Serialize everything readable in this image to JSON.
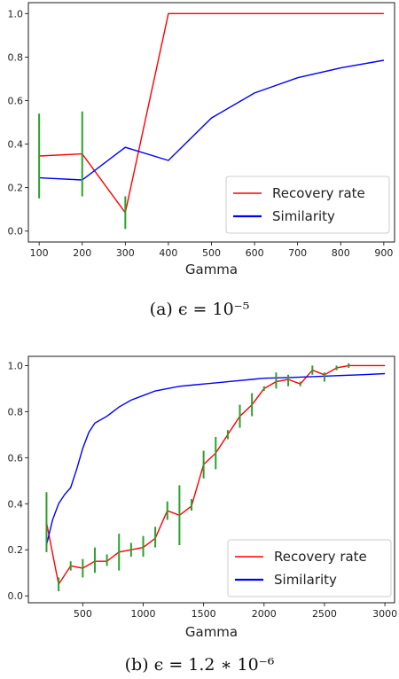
{
  "chart_data": [
    {
      "type": "line",
      "xlabel": "Gamma",
      "caption": "(a) ϵ = 10⁻⁵",
      "xlim": [
        75,
        925
      ],
      "ylim": [
        -0.05,
        1.05
      ],
      "xticks": [
        100,
        200,
        300,
        400,
        500,
        600,
        700,
        800,
        900
      ],
      "xtick_labels": [
        "100",
        "200",
        "300",
        "400",
        "500",
        "600",
        "700",
        "800",
        "900"
      ],
      "yticks": [
        0.0,
        0.2,
        0.4,
        0.6,
        0.8,
        1.0
      ],
      "ytick_labels": [
        "0.0",
        "0.2",
        "0.4",
        "0.6",
        "0.8",
        "1.0"
      ],
      "legend_position": "lower-right",
      "series": [
        {
          "name": "Recovery rate",
          "color": "#ff0000",
          "x": [
            100,
            200,
            300,
            400,
            500,
            600,
            700,
            800,
            900
          ],
          "values": [
            0.345,
            0.355,
            0.085,
            1.0,
            1.0,
            1.0,
            1.0,
            1.0,
            1.0
          ],
          "errorbars": [
            {
              "x": 100,
              "low": 0.15,
              "high": 0.54
            },
            {
              "x": 200,
              "low": 0.16,
              "high": 0.55
            },
            {
              "x": 300,
              "low": 0.01,
              "high": 0.16
            }
          ]
        },
        {
          "name": "Similarity",
          "color": "#0000ff",
          "x": [
            100,
            200,
            300,
            400,
            500,
            600,
            700,
            800,
            900
          ],
          "values": [
            0.245,
            0.235,
            0.385,
            0.325,
            0.52,
            0.635,
            0.705,
            0.75,
            0.785
          ]
        }
      ],
      "errorbar_color": "#2ca02c"
    },
    {
      "type": "line",
      "xlabel": "Gamma",
      "caption": "(b) ϵ = 1.2 ∗ 10⁻⁶",
      "xlim": [
        50,
        3080
      ],
      "ylim": [
        -0.03,
        1.04
      ],
      "xticks": [
        500,
        1000,
        1500,
        2000,
        2500,
        3000
      ],
      "xtick_labels": [
        "500",
        "1000",
        "1500",
        "2000",
        "2500",
        "3000"
      ],
      "yticks": [
        0.0,
        0.2,
        0.4,
        0.6,
        0.8,
        1.0
      ],
      "ytick_labels": [
        "0.0",
        "0.2",
        "0.4",
        "0.6",
        "0.8",
        "1.0"
      ],
      "legend_position": "lower-right",
      "series": [
        {
          "name": "Recovery rate",
          "color": "#ff0000",
          "x": [
            200,
            300,
            400,
            500,
            600,
            700,
            800,
            900,
            1000,
            1100,
            1200,
            1300,
            1400,
            1500,
            1600,
            1700,
            1800,
            1900,
            2000,
            2100,
            2200,
            2300,
            2400,
            2500,
            2600,
            2700,
            2800,
            2900,
            3000
          ],
          "values": [
            0.32,
            0.05,
            0.13,
            0.12,
            0.15,
            0.15,
            0.19,
            0.2,
            0.21,
            0.25,
            0.37,
            0.35,
            0.39,
            0.57,
            0.62,
            0.7,
            0.78,
            0.83,
            0.9,
            0.93,
            0.94,
            0.92,
            0.98,
            0.96,
            0.99,
            1.0,
            1.0,
            1.0,
            1.0
          ],
          "errorbars": [
            {
              "x": 200,
              "low": 0.19,
              "high": 0.45
            },
            {
              "x": 300,
              "low": 0.02,
              "high": 0.08
            },
            {
              "x": 400,
              "low": 0.11,
              "high": 0.15
            },
            {
              "x": 500,
              "low": 0.08,
              "high": 0.16
            },
            {
              "x": 600,
              "low": 0.1,
              "high": 0.21
            },
            {
              "x": 700,
              "low": 0.13,
              "high": 0.18
            },
            {
              "x": 800,
              "low": 0.11,
              "high": 0.27
            },
            {
              "x": 900,
              "low": 0.17,
              "high": 0.23
            },
            {
              "x": 1000,
              "low": 0.17,
              "high": 0.26
            },
            {
              "x": 1100,
              "low": 0.21,
              "high": 0.3
            },
            {
              "x": 1200,
              "low": 0.33,
              "high": 0.41
            },
            {
              "x": 1300,
              "low": 0.22,
              "high": 0.48
            },
            {
              "x": 1400,
              "low": 0.37,
              "high": 0.42
            },
            {
              "x": 1500,
              "low": 0.51,
              "high": 0.63
            },
            {
              "x": 1600,
              "low": 0.55,
              "high": 0.69
            },
            {
              "x": 1700,
              "low": 0.68,
              "high": 0.72
            },
            {
              "x": 1800,
              "low": 0.73,
              "high": 0.83
            },
            {
              "x": 1900,
              "low": 0.78,
              "high": 0.88
            },
            {
              "x": 2000,
              "low": 0.89,
              "high": 0.91
            },
            {
              "x": 2100,
              "low": 0.9,
              "high": 0.97
            },
            {
              "x": 2200,
              "low": 0.91,
              "high": 0.96
            },
            {
              "x": 2300,
              "low": 0.91,
              "high": 0.93
            },
            {
              "x": 2400,
              "low": 0.96,
              "high": 1.0
            },
            {
              "x": 2500,
              "low": 0.93,
              "high": 0.97
            },
            {
              "x": 2600,
              "low": 0.98,
              "high": 1.0
            },
            {
              "x": 2700,
              "low": 0.99,
              "high": 1.01
            }
          ]
        },
        {
          "name": "Similarity",
          "color": "#0000ff",
          "x": [
            200,
            250,
            300,
            350,
            400,
            450,
            500,
            550,
            600,
            700,
            800,
            900,
            1000,
            1100,
            1200,
            1300,
            1400,
            1500,
            1600,
            1700,
            1800,
            1900,
            2000,
            2200,
            2400,
            2600,
            2800,
            3000
          ],
          "values": [
            0.22,
            0.33,
            0.4,
            0.44,
            0.47,
            0.55,
            0.64,
            0.71,
            0.75,
            0.78,
            0.82,
            0.85,
            0.87,
            0.89,
            0.9,
            0.91,
            0.915,
            0.92,
            0.925,
            0.93,
            0.935,
            0.94,
            0.945,
            0.948,
            0.952,
            0.956,
            0.96,
            0.965
          ]
        }
      ],
      "errorbar_color": "#2ca02c"
    }
  ]
}
